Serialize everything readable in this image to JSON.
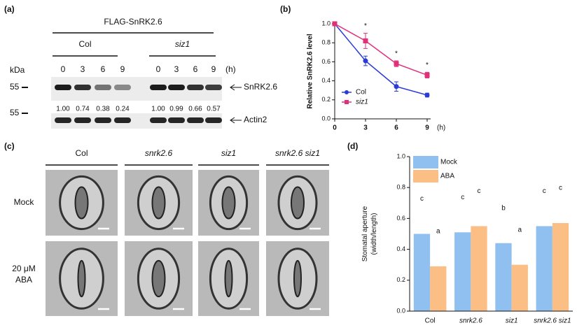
{
  "panel_labels": [
    "(a)",
    "(b)",
    "(c)",
    "(d)"
  ],
  "blot": {
    "title": "FLAG-SnRK2.6",
    "groups": [
      "Col",
      "siz1"
    ],
    "lanes": [
      "0",
      "3",
      "6",
      "9",
      "0",
      "3",
      "6",
      "9"
    ],
    "time_unit": "(h)",
    "size_unit": "kDa",
    "markers": [
      "55",
      "55"
    ],
    "band_labels": [
      "SnRK2.6",
      "Actin2"
    ],
    "quantification": [
      "1.00",
      "0.74",
      "0.38",
      "0.24",
      "1.00",
      "0.99",
      "0.66",
      "0.57"
    ]
  },
  "micrographs": {
    "column_labels": [
      "Col",
      "snrk2.6",
      "siz1",
      "snrk2.6 siz1"
    ],
    "row_labels": [
      [
        "Mock"
      ],
      [
        "20 μM",
        "ABA"
      ]
    ]
  },
  "chart_data": [
    {
      "type": "line",
      "ylabel": "Relative SnRK2.6 level",
      "xlabel": "(h)",
      "x": [
        0,
        3,
        6,
        9
      ],
      "xlim": [
        0,
        9
      ],
      "xticks": [
        0,
        3,
        6,
        9
      ],
      "ylim": [
        0,
        1.0
      ],
      "yticks": [
        {
          "value": 0,
          "label": "0.0"
        },
        0.2,
        0.4,
        0.6,
        0.8,
        {
          "value": 1.0,
          "label": "1.0"
        }
      ],
      "series": [
        {
          "name": "Col",
          "color": "#2b3bd6",
          "marker": "circle",
          "values": [
            1.0,
            0.61,
            0.34,
            0.25
          ],
          "errors": [
            0,
            0.05,
            0.05,
            0.02
          ]
        },
        {
          "name": "siz1",
          "color": "#e0307a",
          "marker": "square",
          "values": [
            1.0,
            0.82,
            0.58,
            0.46
          ],
          "errors": [
            0,
            0.08,
            0.03,
            0.03
          ]
        }
      ],
      "significance": [
        null,
        "*",
        "*",
        "*"
      ]
    },
    {
      "type": "bar",
      "ylabel": [
        "Stomatal aperture",
        "(width/length)"
      ],
      "categories": [
        "Col",
        "snrk2.6",
        "siz1",
        "snrk2.6 siz1"
      ],
      "ylim": [
        0,
        1.0
      ],
      "yticks": [
        {
          "value": 0,
          "label": "0.0"
        },
        0.2,
        0.4,
        0.6,
        0.8,
        {
          "value": 1.0,
          "label": "1.0"
        }
      ],
      "series": [
        {
          "name": "Mock",
          "color": "#8fc0f0",
          "values": [
            0.5,
            0.51,
            0.44,
            0.55
          ],
          "letters": [
            "c",
            "c",
            "b",
            "c"
          ]
        },
        {
          "name": "ABA",
          "color": "#fbbf86",
          "values": [
            0.29,
            0.55,
            0.3,
            0.57
          ],
          "letters": [
            "a",
            "c",
            "a",
            "c"
          ]
        }
      ]
    }
  ]
}
